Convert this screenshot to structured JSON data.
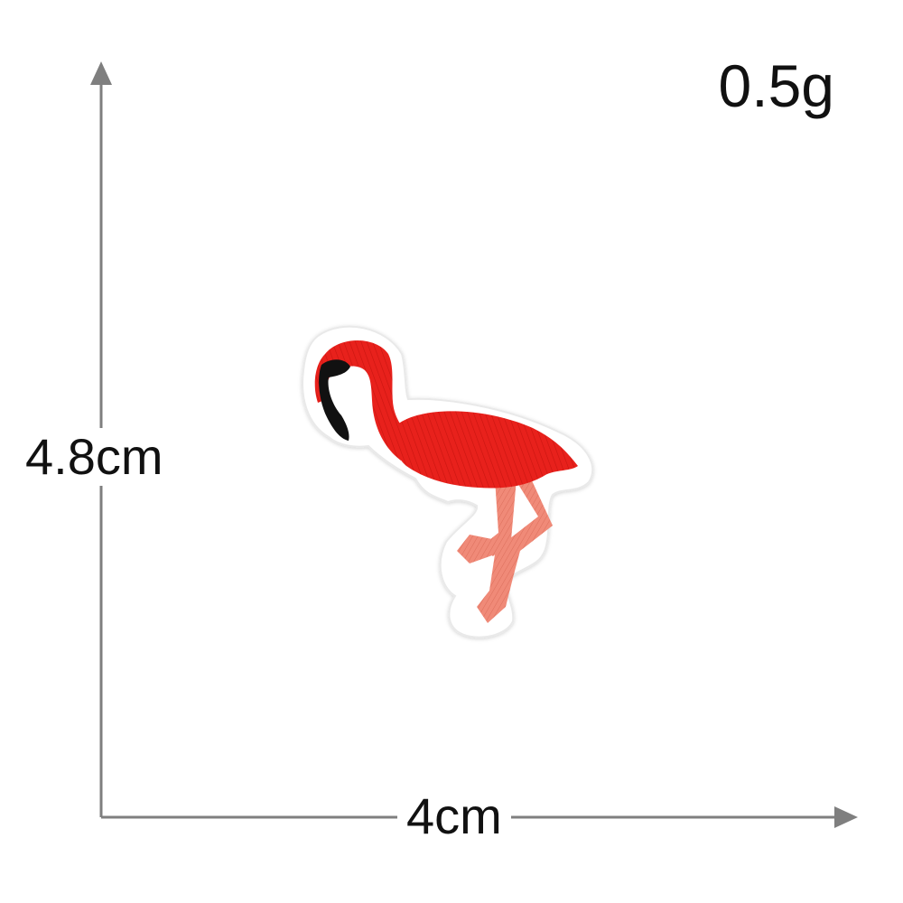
{
  "weight": "0.5g",
  "dimensions": {
    "height": "4.8cm",
    "width": "4cm"
  },
  "product": {
    "subject": "flamingo",
    "icon": "flamingo-patch-icon"
  },
  "colors": {
    "axis": "#7f7f7f",
    "body": "#e8211c",
    "legs": "#f08a78",
    "beak": "#111111",
    "felt_border": "#ffffff",
    "text": "#111111"
  }
}
